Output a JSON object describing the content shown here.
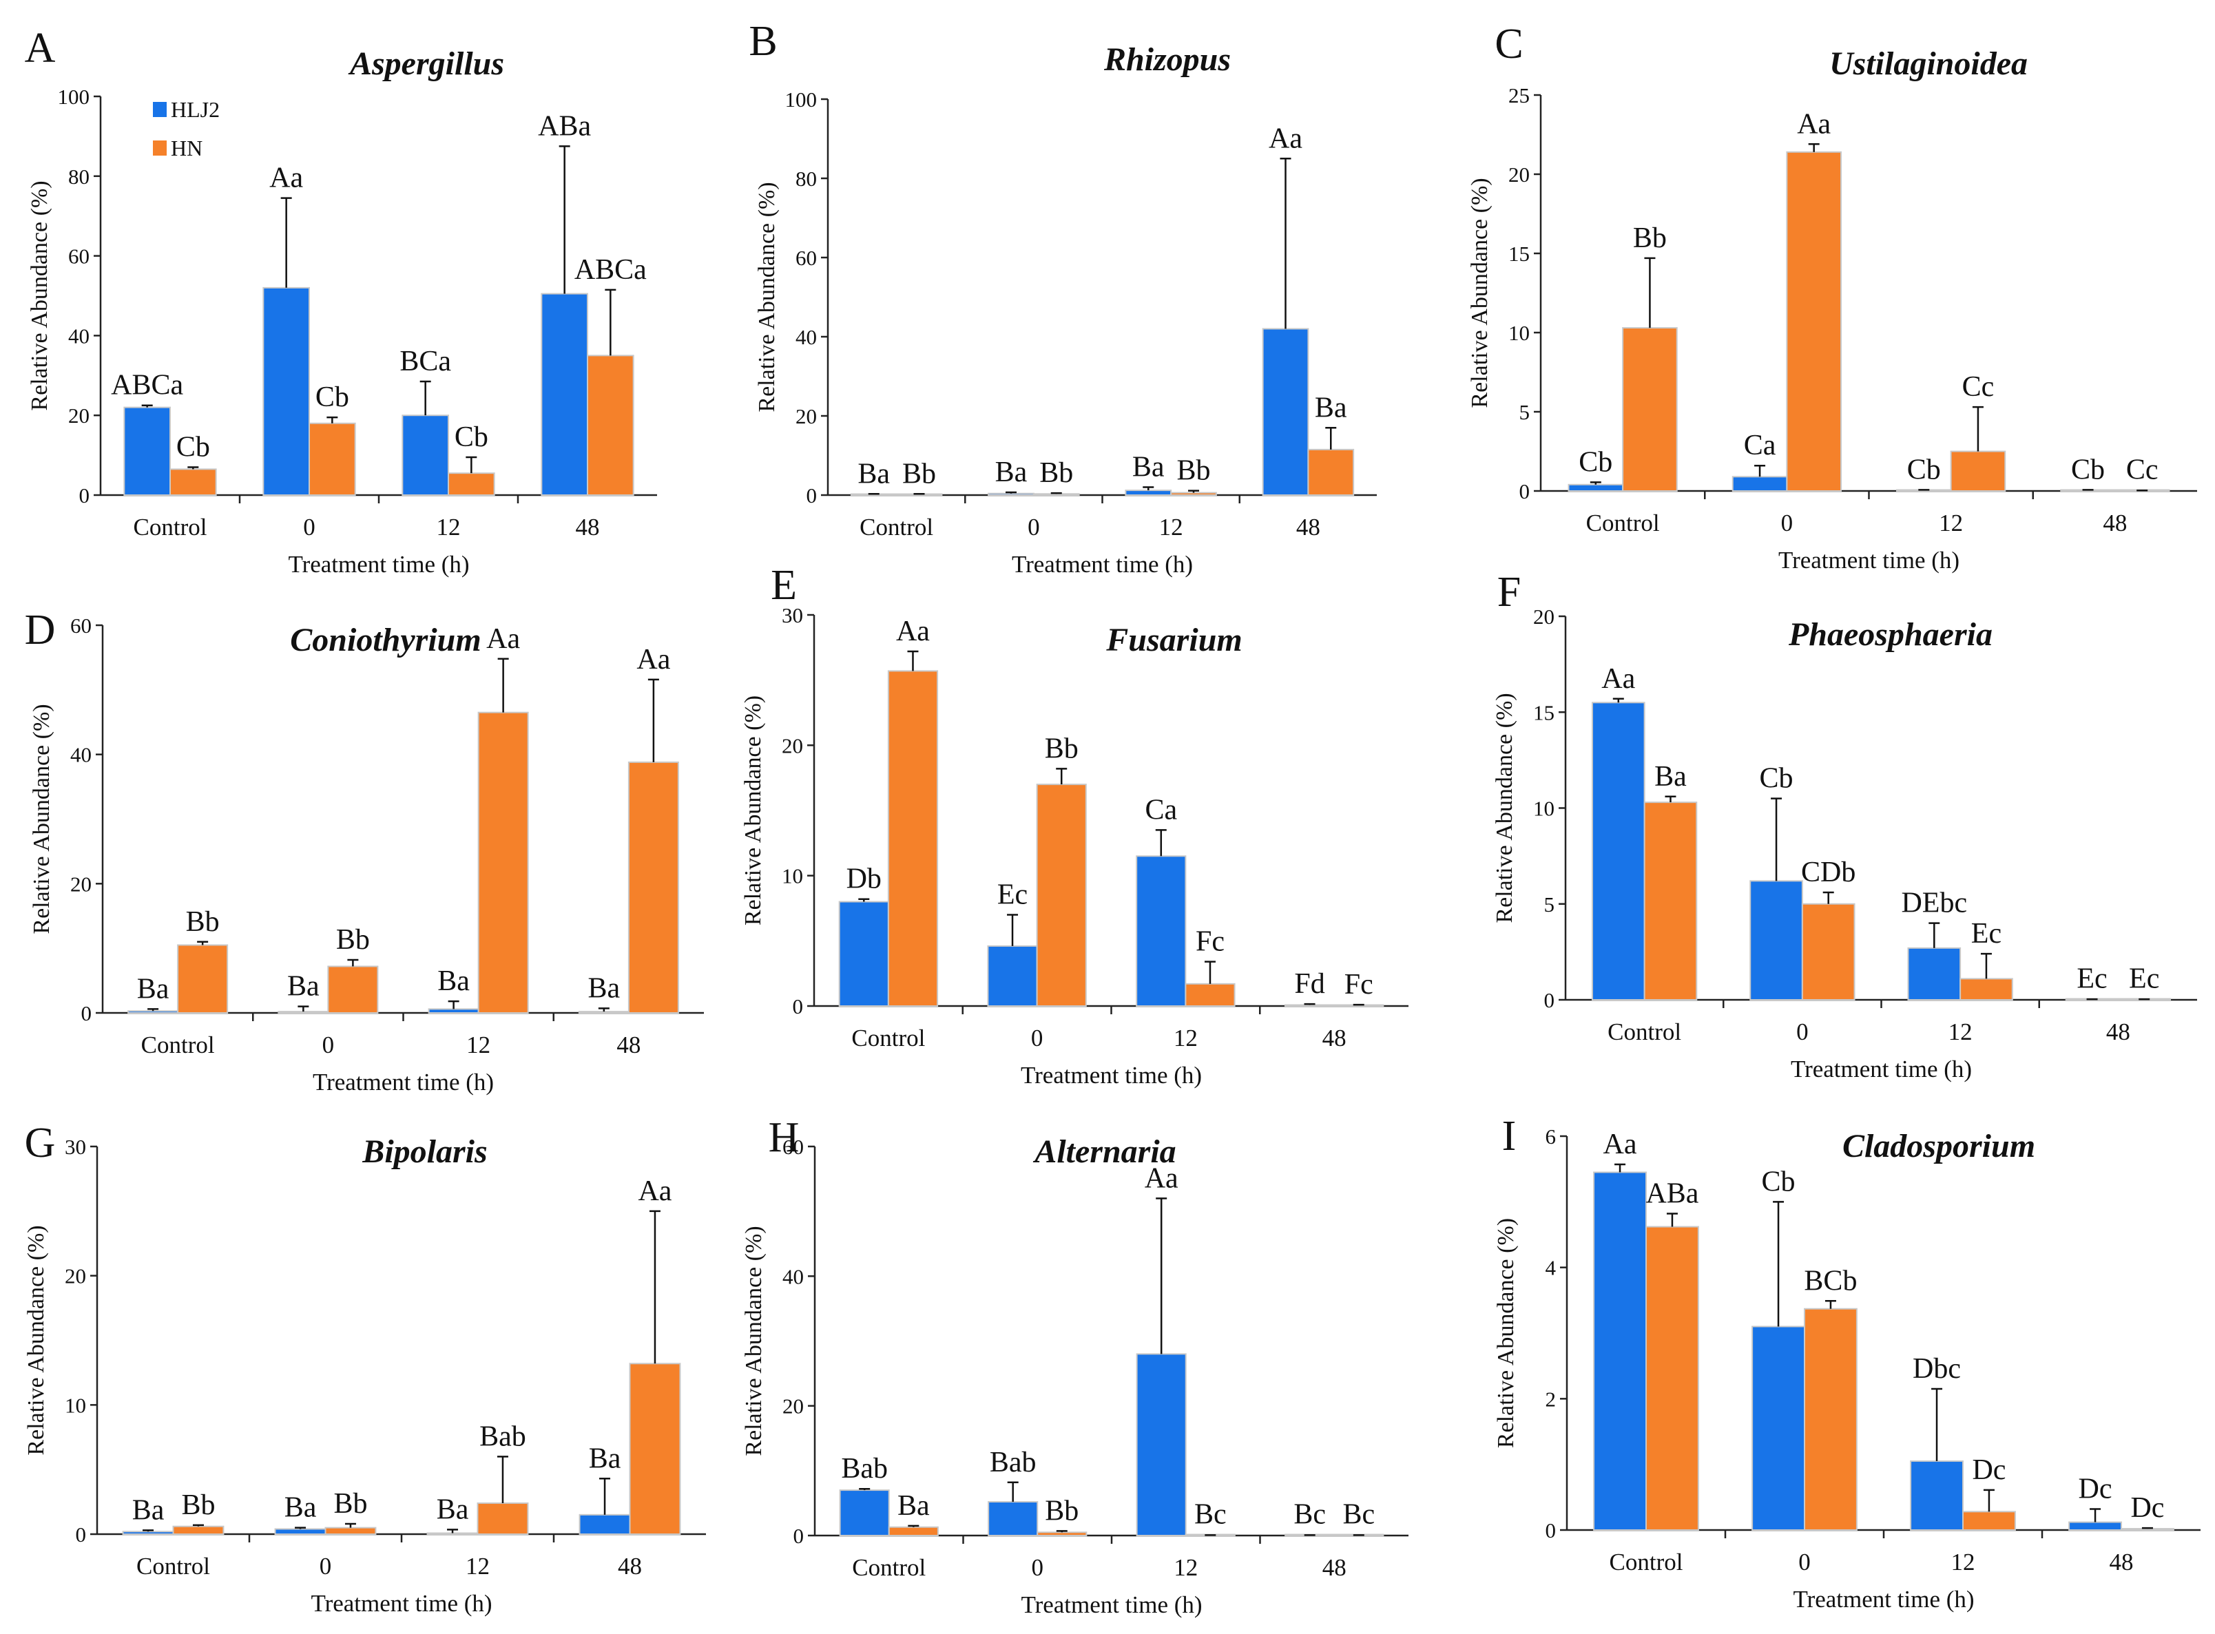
{
  "figure": {
    "legend": [
      "HLJ2",
      "HN"
    ],
    "colors": {
      "HLJ2": "#1874E8",
      "HN": "#F5812A",
      "border": "#C8C8C8"
    }
  },
  "chart_data": [
    {
      "letter": "A",
      "title": "Aspergillus",
      "type": "bar",
      "categories": [
        "Control",
        "0",
        "12",
        "48"
      ],
      "xlabel": "Treatment time (h)",
      "ylabel": "Relative Abundance (%)",
      "ylim": [
        0,
        100
      ],
      "yticks": [
        0,
        20,
        40,
        60,
        80,
        100
      ],
      "series": [
        {
          "name": "HLJ2",
          "values": [
            22,
            52,
            20,
            50.5
          ],
          "errors": [
            0.5,
            22.5,
            8.5,
            37
          ],
          "labels": [
            "ABCa",
            "Aa",
            "BCa",
            "ABa"
          ]
        },
        {
          "name": "HN",
          "values": [
            6.5,
            18,
            5.5,
            35
          ],
          "errors": [
            0.5,
            1.5,
            4,
            16.5
          ],
          "labels": [
            "Cb",
            "Cb",
            "Cb",
            "ABCa"
          ]
        }
      ]
    },
    {
      "letter": "B",
      "title": "Rhizopus",
      "type": "bar",
      "categories": [
        "Control",
        "0",
        "12",
        "48"
      ],
      "xlabel": "Treatment time (h)",
      "ylabel": "Relative Abundance (%)",
      "ylim": [
        0,
        100
      ],
      "yticks": [
        0,
        20,
        40,
        60,
        80,
        100
      ],
      "series": [
        {
          "name": "HLJ2",
          "values": [
            0.2,
            0.4,
            1.2,
            42
          ],
          "errors": [
            0.1,
            0.3,
            0.8,
            43
          ],
          "labels": [
            "Ba",
            "Ba",
            "Ba",
            "Aa"
          ]
        },
        {
          "name": "HN",
          "values": [
            0.2,
            0.3,
            0.6,
            11.5
          ],
          "errors": [
            0.1,
            0.2,
            0.5,
            5.5
          ],
          "labels": [
            "Bb",
            "Bb",
            "Bb",
            "Ba"
          ]
        }
      ]
    },
    {
      "letter": "C",
      "title": "Ustilaginoidea",
      "type": "bar",
      "categories": [
        "Control",
        "0",
        "12",
        "48"
      ],
      "xlabel": "Treatment time (h)",
      "ylabel": "Relative Abundance (%)",
      "ylim": [
        0,
        25
      ],
      "yticks": [
        0,
        5,
        10,
        15,
        20,
        25
      ],
      "series": [
        {
          "name": "HLJ2",
          "values": [
            0.4,
            0.9,
            0.05,
            0.05
          ],
          "errors": [
            0.15,
            0.7,
            0.02,
            0.02
          ],
          "labels": [
            "Cb",
            "Ca",
            "Cb",
            "Cb"
          ]
        },
        {
          "name": "HN",
          "values": [
            10.3,
            21.4,
            2.5,
            0.02
          ],
          "errors": [
            4.4,
            0.5,
            2.8,
            0.01
          ],
          "labels": [
            "Bb",
            "Aa",
            "Cc",
            "Cc"
          ]
        }
      ]
    },
    {
      "letter": "D",
      "title": "Coniothyrium",
      "type": "bar",
      "categories": [
        "Control",
        "0",
        "12",
        "48"
      ],
      "xlabel": "Treatment time (h)",
      "ylabel": "Relative Abundance (%)",
      "ylim": [
        0,
        60
      ],
      "yticks": [
        0,
        20,
        40,
        60
      ],
      "series": [
        {
          "name": "HLJ2",
          "values": [
            0.3,
            0.2,
            0.6,
            0.2
          ],
          "errors": [
            0.3,
            0.8,
            1.2,
            0.5
          ],
          "labels": [
            "Ba",
            "Ba",
            "Ba",
            "Ba"
          ]
        },
        {
          "name": "HN",
          "values": [
            10.5,
            7.2,
            46.5,
            38.8
          ],
          "errors": [
            0.5,
            1,
            8.3,
            12.8
          ],
          "labels": [
            "Bb",
            "Bb",
            "Aa",
            "Aa"
          ]
        }
      ]
    },
    {
      "letter": "E",
      "title": "Fusarium",
      "type": "bar",
      "categories": [
        "Control",
        "0",
        "12",
        "48"
      ],
      "xlabel": "Treatment time (h)",
      "ylabel": "Relative Abundance (%)",
      "ylim": [
        0,
        30
      ],
      "yticks": [
        0,
        10,
        20,
        30
      ],
      "series": [
        {
          "name": "HLJ2",
          "values": [
            8,
            4.6,
            11.5,
            0.05
          ],
          "errors": [
            0.2,
            2.4,
            2,
            0.1
          ],
          "labels": [
            "Db",
            "Ec",
            "Ca",
            "Fd"
          ]
        },
        {
          "name": "HN",
          "values": [
            25.7,
            17,
            1.7,
            0.05
          ],
          "errors": [
            1.5,
            1.2,
            1.7,
            0.05
          ],
          "labels": [
            "Aa",
            "Bb",
            "Fc",
            "Fc"
          ]
        }
      ]
    },
    {
      "letter": "F",
      "title": "Phaeosphaeria",
      "type": "bar",
      "categories": [
        "Control",
        "0",
        "12",
        "48"
      ],
      "xlabel": "Treatment time (h)",
      "ylabel": "Relative Abundance (%)",
      "ylim": [
        0,
        20
      ],
      "yticks": [
        0,
        5,
        10,
        15,
        20
      ],
      "series": [
        {
          "name": "HLJ2",
          "values": [
            15.5,
            6.2,
            2.7,
            0.02
          ],
          "errors": [
            0.2,
            4.3,
            1.3,
            0.01
          ],
          "labels": [
            "Aa",
            "Cb",
            "DEbc",
            "Ec"
          ]
        },
        {
          "name": "HN",
          "values": [
            10.3,
            5,
            1.1,
            0.02
          ],
          "errors": [
            0.3,
            0.6,
            1.3,
            0.01
          ],
          "labels": [
            "Ba",
            "CDb",
            "Ec",
            "Ec"
          ]
        }
      ]
    },
    {
      "letter": "G",
      "title": "Bipolaris",
      "type": "bar",
      "categories": [
        "Control",
        "0",
        "12",
        "48"
      ],
      "xlabel": "Treatment time (h)",
      "ylabel": "Relative Abundance (%)",
      "ylim": [
        0,
        30
      ],
      "yticks": [
        0,
        10,
        20,
        30
      ],
      "series": [
        {
          "name": "HLJ2",
          "values": [
            0.2,
            0.4,
            0.05,
            1.5
          ],
          "errors": [
            0.1,
            0.1,
            0.3,
            2.8
          ],
          "labels": [
            "Ba",
            "Ba",
            "Ba",
            "Ba"
          ]
        },
        {
          "name": "HN",
          "values": [
            0.6,
            0.5,
            2.4,
            13.2
          ],
          "errors": [
            0.1,
            0.3,
            3.6,
            11.8
          ],
          "labels": [
            "Bb",
            "Bb",
            "Bab",
            "Aa"
          ]
        }
      ]
    },
    {
      "letter": "H",
      "title": "Alternaria",
      "type": "bar",
      "categories": [
        "Control",
        "0",
        "12",
        "48"
      ],
      "xlabel": "Treatment time (h)",
      "ylabel": "Relative Abundance (%)",
      "ylim": [
        0,
        60
      ],
      "yticks": [
        0,
        20,
        40,
        60
      ],
      "series": [
        {
          "name": "HLJ2",
          "values": [
            7,
            5.2,
            28,
            0.05
          ],
          "errors": [
            0.2,
            3,
            24,
            0.02
          ],
          "labels": [
            "Bab",
            "Bab",
            "Aa",
            "Bc"
          ]
        },
        {
          "name": "HN",
          "values": [
            1.3,
            0.5,
            0.05,
            0.05
          ],
          "errors": [
            0.2,
            0.2,
            0.02,
            0.02
          ],
          "labels": [
            "Ba",
            "Bb",
            "Bc",
            "Bc"
          ]
        }
      ]
    },
    {
      "letter": "I",
      "title": "Cladosporium",
      "type": "bar",
      "categories": [
        "Control",
        "0",
        "12",
        "48"
      ],
      "xlabel": "Treatment time (h)",
      "ylabel": "Relative Abundance (%)",
      "ylim": [
        0,
        6
      ],
      "yticks": [
        0,
        2,
        4,
        6
      ],
      "series": [
        {
          "name": "HLJ2",
          "values": [
            5.45,
            3.1,
            1.05,
            0.12
          ],
          "errors": [
            0.12,
            1.9,
            1.1,
            0.2
          ],
          "labels": [
            "Aa",
            "Cb",
            "Dbc",
            "Dc"
          ]
        },
        {
          "name": "HN",
          "values": [
            4.62,
            3.37,
            0.28,
            0.02
          ],
          "errors": [
            0.2,
            0.12,
            0.33,
            0.01
          ],
          "labels": [
            "ABa",
            "BCb",
            "Dc",
            "Dc"
          ]
        }
      ]
    }
  ]
}
